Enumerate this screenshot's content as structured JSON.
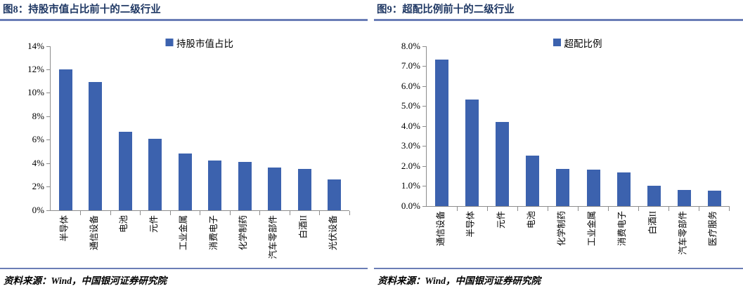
{
  "colors": {
    "bar": "#3C62AE",
    "divider_rule": "#6A7DB6",
    "title_text": "#1F3864",
    "axis_line": "#8C8C8C"
  },
  "chart_data": [
    {
      "type": "bar",
      "title": "图8：持股市值占比前十的二级行业",
      "legend": "持股市值占比",
      "categories": [
        "半导体",
        "通信设备",
        "电池",
        "元件",
        "工业金属",
        "消费电子",
        "化学制药",
        "汽车零部件",
        "白酒II",
        "光伏设备"
      ],
      "values": [
        12.0,
        10.9,
        6.7,
        6.1,
        4.8,
        4.2,
        4.1,
        3.6,
        3.5,
        2.6
      ],
      "xlabel": "",
      "ylabel": "",
      "ylim": [
        0,
        14
      ],
      "ytick_step": 2,
      "ytick_decimals": 0,
      "ytick_suffix": "%",
      "legend_position": "top",
      "grid": false,
      "source": "资料来源：Wind，中国银河证券研究院"
    },
    {
      "type": "bar",
      "title": "图9：超配比例前十的二级行业",
      "legend": "超配比例",
      "categories": [
        "通信设备",
        "半导体",
        "元件",
        "电池",
        "化学制药",
        "工业金属",
        "消费电子",
        "白酒II",
        "汽车零部件",
        "医疗服务"
      ],
      "values": [
        7.3,
        5.3,
        4.2,
        2.5,
        1.85,
        1.8,
        1.65,
        1.0,
        0.8,
        0.75
      ],
      "xlabel": "",
      "ylabel": "",
      "ylim": [
        0,
        8
      ],
      "ytick_step": 1,
      "ytick_decimals": 1,
      "ytick_suffix": "%",
      "legend_position": "top",
      "grid": false,
      "source": "资料来源：Wind，中国银河证券研究院"
    }
  ]
}
